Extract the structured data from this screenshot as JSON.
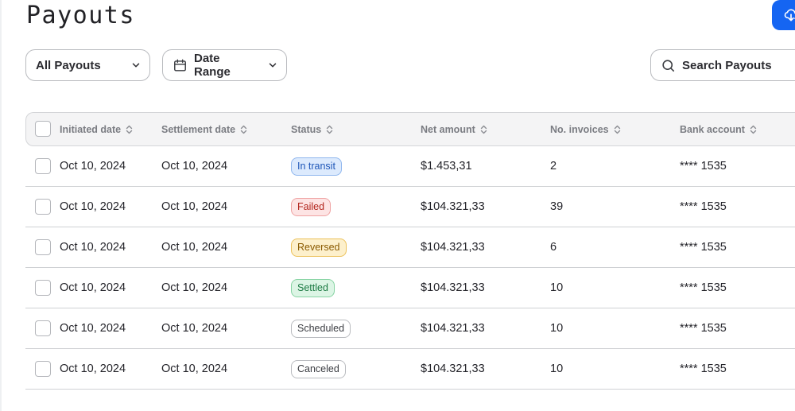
{
  "page": {
    "title": "Payouts"
  },
  "toolbar": {
    "payout_filter": "All Payouts",
    "date_range": "Date Range",
    "search_placeholder": "Search Payouts"
  },
  "icons": {
    "export": "download-cloud-icon",
    "calendar": "calendar-icon",
    "chevron": "chevron-down-icon",
    "search": "search-icon",
    "sort": "sort-icon"
  },
  "table": {
    "columns": [
      "Initiated date",
      "Settlement date",
      "Status",
      "Net amount",
      "No. invoices",
      "Bank account"
    ],
    "rows": [
      {
        "initiated": "Oct 10, 2024",
        "settlement": "Oct 10, 2024",
        "status": "In transit",
        "net_amount": "$1.453,31",
        "invoices": "2",
        "bank": "**** 1535"
      },
      {
        "initiated": "Oct 10, 2024",
        "settlement": "Oct 10, 2024",
        "status": "Failed",
        "net_amount": "$104.321,33",
        "invoices": "39",
        "bank": "**** 1535"
      },
      {
        "initiated": "Oct 10, 2024",
        "settlement": "Oct 10, 2024",
        "status": "Reversed",
        "net_amount": "$104.321,33",
        "invoices": "6",
        "bank": "**** 1535"
      },
      {
        "initiated": "Oct 10, 2024",
        "settlement": "Oct 10, 2024",
        "status": "Settled",
        "net_amount": "$104.321,33",
        "invoices": "10",
        "bank": "**** 1535"
      },
      {
        "initiated": "Oct 10, 2024",
        "settlement": "Oct 10, 2024",
        "status": "Scheduled",
        "net_amount": "$104.321,33",
        "invoices": "10",
        "bank": "**** 1535"
      },
      {
        "initiated": "Oct 10, 2024",
        "settlement": "Oct 10, 2024",
        "status": "Canceled",
        "net_amount": "$104.321,33",
        "invoices": "10",
        "bank": "**** 1535"
      }
    ]
  },
  "colors": {
    "accent": "#1565f2",
    "status": {
      "In transit": {
        "bg": "#dceafd",
        "border": "#8fb6ee",
        "text": "#1f57b8"
      },
      "Failed": {
        "bg": "#fde4e4",
        "border": "#efa3a3",
        "text": "#b3261e"
      },
      "Reversed": {
        "bg": "#fdf0cc",
        "border": "#ecc25c",
        "text": "#8a5a00"
      },
      "Settled": {
        "bg": "#dcf5e5",
        "border": "#86d3a2",
        "text": "#1c7a43"
      },
      "Scheduled": {
        "bg": "#ffffff",
        "border": "#b9bbbf",
        "text": "#3b3d42"
      },
      "Canceled": {
        "bg": "#ffffff",
        "border": "#b9bbbf",
        "text": "#3b3d42"
      }
    }
  }
}
